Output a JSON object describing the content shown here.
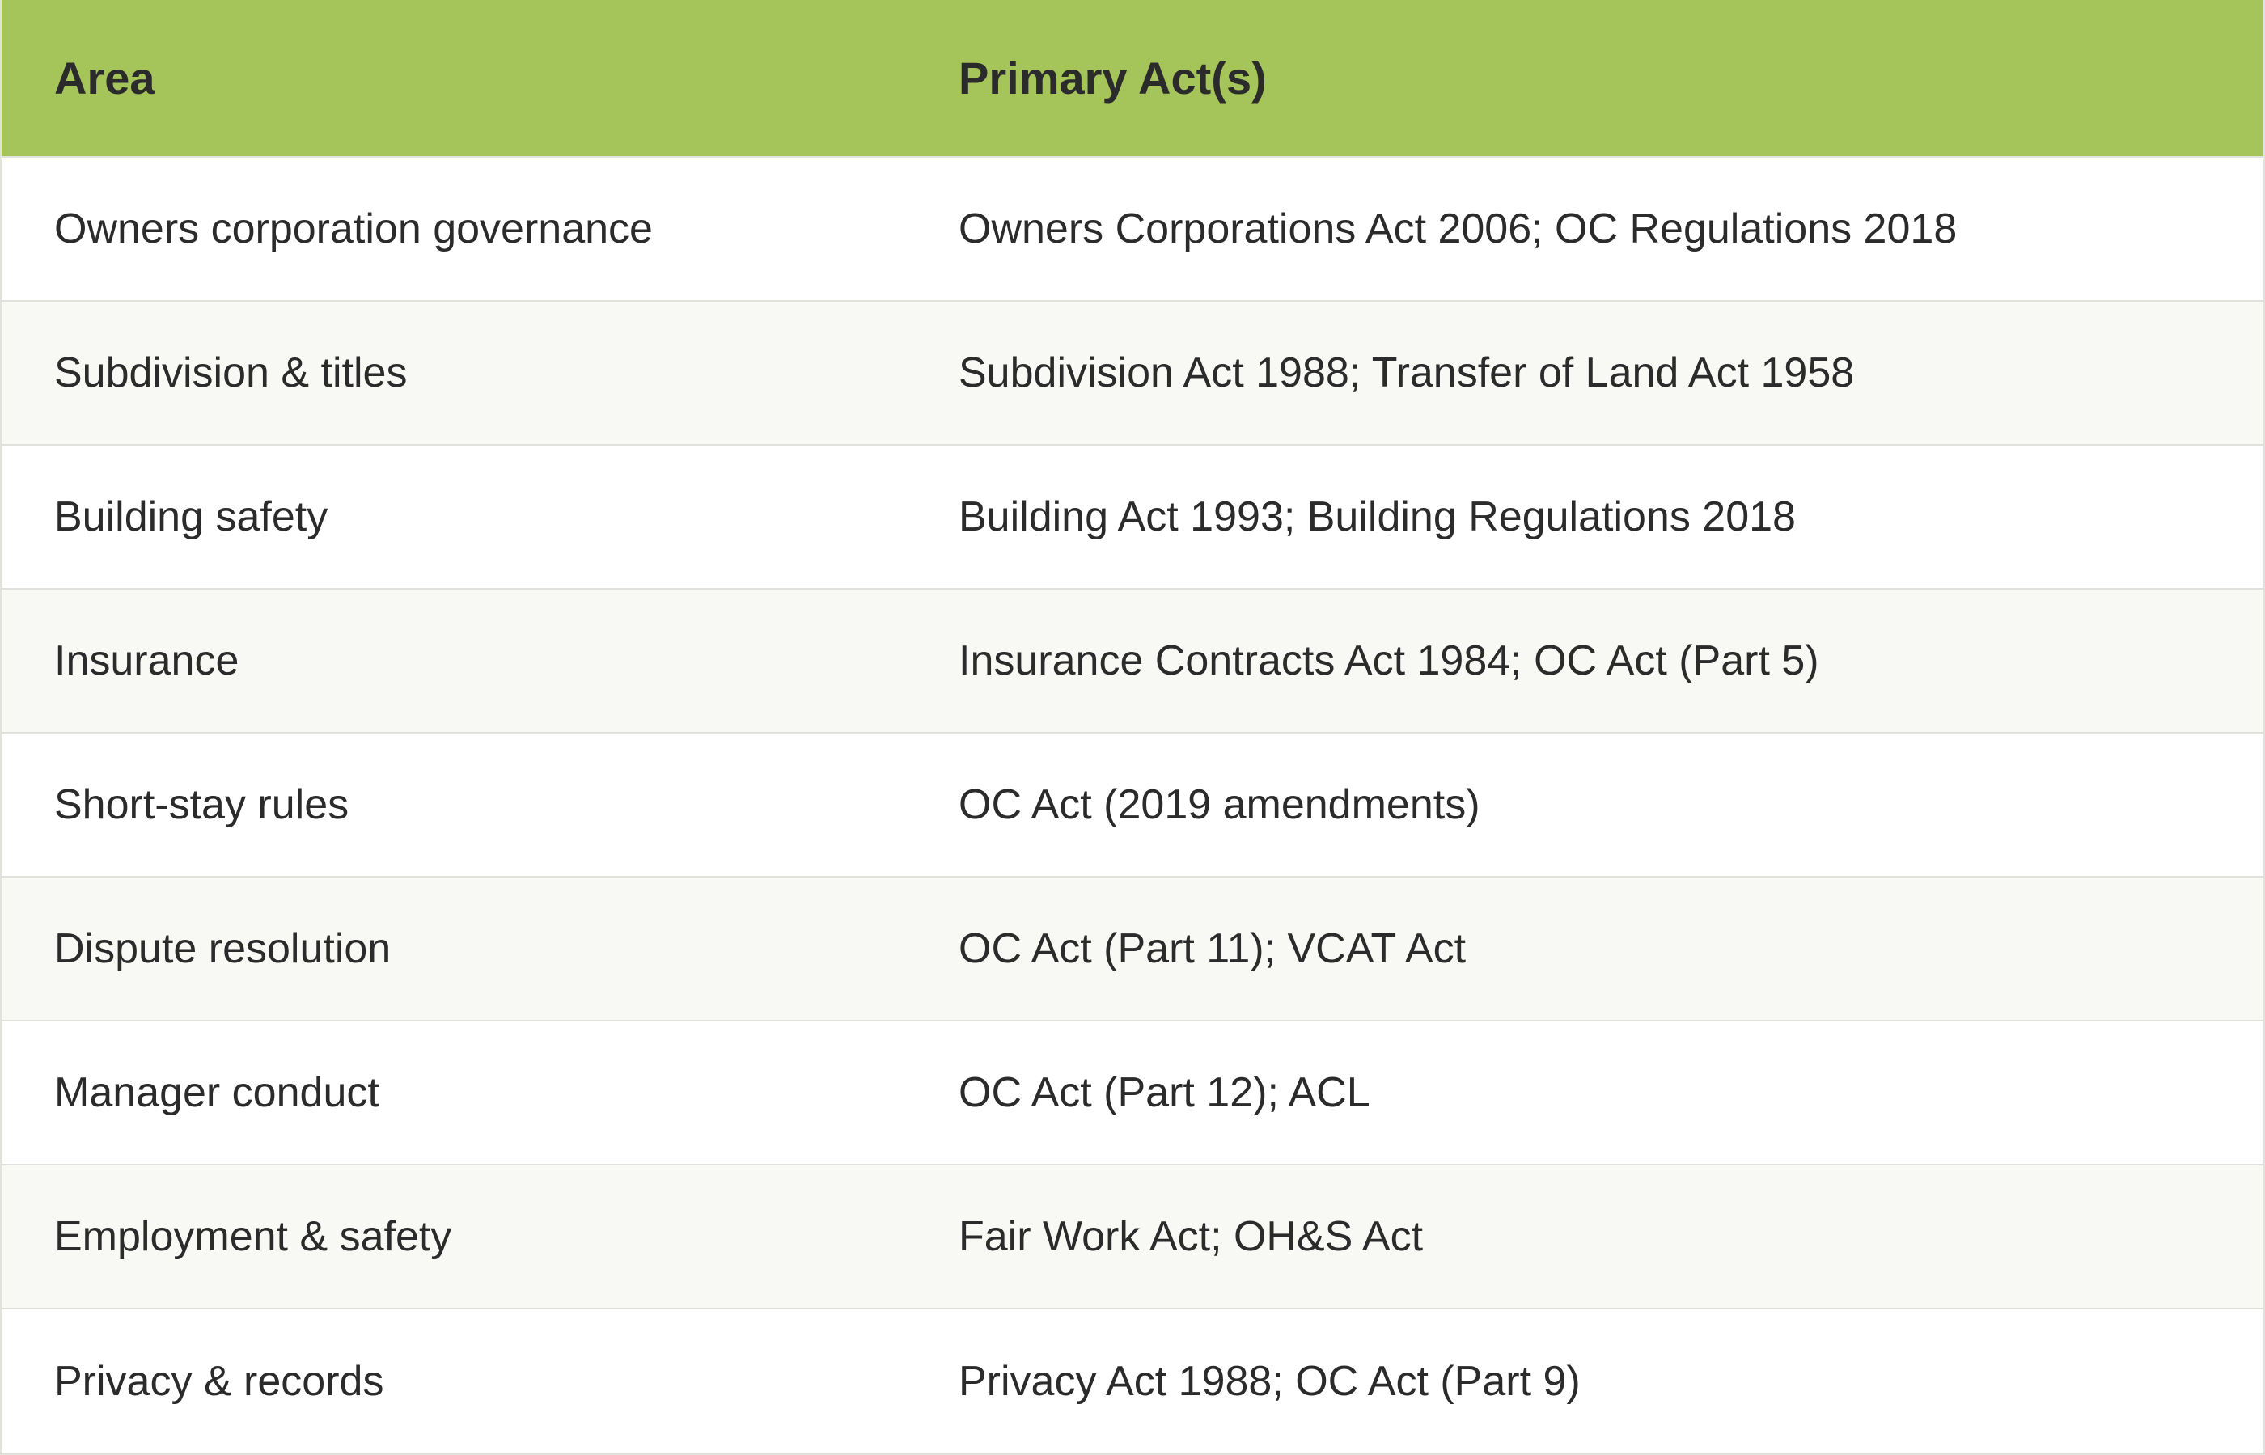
{
  "table": {
    "headers": {
      "area": "Area",
      "acts": "Primary Act(s)"
    },
    "rows": [
      {
        "area": "Owners corporation governance",
        "acts": "Owners Corporations Act 2006; OC Regulations 2018"
      },
      {
        "area": "Subdivision & titles",
        "acts": "Subdivision Act 1988; Transfer of Land Act 1958"
      },
      {
        "area": "Building safety",
        "acts": "Building Act 1993; Building Regulations 2018"
      },
      {
        "area": "Insurance",
        "acts": "Insurance Contracts Act 1984; OC Act (Part 5)"
      },
      {
        "area": "Short-stay rules",
        "acts": "OC Act (2019 amendments)"
      },
      {
        "area": "Dispute resolution",
        "acts": "OC Act (Part 11); VCAT Act"
      },
      {
        "area": "Manager conduct",
        "acts": "OC Act (Part 12); ACL"
      },
      {
        "area": "Employment & safety",
        "acts": "Fair Work Act; OH&S Act"
      },
      {
        "area": "Privacy & records",
        "acts": "Privacy Act 1988; OC Act (Part 9)"
      }
    ]
  },
  "colors": {
    "header_bg": "#a5c55a",
    "row_alt_bg": "#f8f8f5",
    "text": "#2b2b2b"
  }
}
